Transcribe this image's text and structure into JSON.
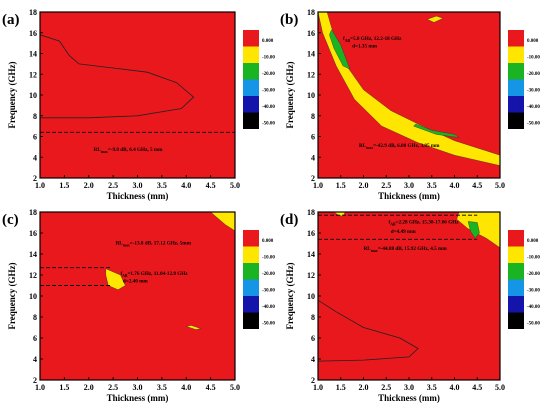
{
  "chart_data": [
    {
      "type": "heatmap",
      "panel_label": "(a)",
      "xlabel": "Thickness (mm)",
      "ylabel": "Frequency (GHz)",
      "xlim": [
        1.0,
        5.0
      ],
      "ylim": [
        2,
        18
      ],
      "xticks": [
        "1.0",
        "1.5",
        "2.0",
        "2.5",
        "3.0",
        "3.5",
        "4.0",
        "4.5",
        "5.0"
      ],
      "yticks": [
        "2",
        "4",
        "6",
        "8",
        "10",
        "12",
        "14",
        "16",
        "18"
      ],
      "legend": {
        "levels": [
          "0.000",
          "-10.00",
          "-20.00",
          "-30.00",
          "-40.00",
          "-50.00"
        ],
        "colors": [
          "#e8181d",
          "#ffe600",
          "#1ab423",
          "#1495e6",
          "#1414aa",
          "#000000"
        ]
      },
      "contours": [
        {
          "level": -10,
          "path": [
            [
              1.0,
              15.8
            ],
            [
              1.4,
              15.2
            ],
            [
              1.6,
              13.8
            ],
            [
              1.8,
              13.0
            ],
            [
              2.5,
              12.6
            ],
            [
              3.2,
              12.2
            ],
            [
              3.8,
              11.2
            ],
            [
              4.15,
              9.8
            ],
            [
              3.9,
              8.7
            ],
            [
              3.0,
              8.0
            ],
            [
              2.0,
              7.8
            ],
            [
              1.0,
              7.8
            ]
          ]
        }
      ],
      "regions": [],
      "dashed_lines": [
        {
          "y": 6.4,
          "x0": 1.0,
          "x1": 5.0
        }
      ],
      "annotations": [
        {
          "text": "RL_max=-9.8 dB, 6.4 GHz, 5 mm",
          "x": 2.1,
          "y": 4.6
        }
      ]
    },
    {
      "type": "heatmap",
      "panel_label": "(b)",
      "xlabel": "Thickness (mm)",
      "ylabel": "Frequency (GHz)",
      "xlim": [
        1.0,
        5.0
      ],
      "ylim": [
        2,
        18
      ],
      "xticks": [
        "1.0",
        "1.5",
        "2.0",
        "2.5",
        "3.0",
        "3.5",
        "4.0",
        "4.5",
        "5.0"
      ],
      "yticks": [
        "2",
        "4",
        "6",
        "8",
        "10",
        "12",
        "14",
        "16",
        "18"
      ],
      "legend": {
        "levels": [
          "0.000",
          "-10.00",
          "-20.00",
          "-30.00",
          "-40.00",
          "-50.00"
        ],
        "colors": [
          "#e8181d",
          "#ffe600",
          "#1ab423",
          "#1495e6",
          "#1414aa",
          "#000000"
        ]
      },
      "contours": [],
      "regions": [
        {
          "color": "#ffe600",
          "path": [
            [
              1.2,
              18
            ],
            [
              1.3,
              16.5
            ],
            [
              1.6,
              13.0
            ],
            [
              2.0,
              10.5
            ],
            [
              2.6,
              8.5
            ],
            [
              3.2,
              7.2
            ],
            [
              4.0,
              5.6
            ],
            [
              5.0,
              4.2
            ],
            [
              5.0,
              3.2
            ],
            [
              4.0,
              4.2
            ],
            [
              3.2,
              5.4
            ],
            [
              2.4,
              7.0
            ],
            [
              1.8,
              9.6
            ],
            [
              1.4,
              12.8
            ],
            [
              1.1,
              16.0
            ],
            [
              1.0,
              18
            ]
          ]
        },
        {
          "color": "#1ab423",
          "path": [
            [
              1.3,
              16.3
            ],
            [
              1.5,
              14.8
            ],
            [
              1.7,
              12.5
            ],
            [
              1.55,
              12.8
            ],
            [
              1.35,
              14.5
            ],
            [
              1.25,
              15.8
            ]
          ]
        },
        {
          "color": "#1ab423",
          "path": [
            [
              3.1,
              7.0
            ],
            [
              3.6,
              6.2
            ],
            [
              4.1,
              5.9
            ],
            [
              4.0,
              6.2
            ],
            [
              3.5,
              6.6
            ],
            [
              3.15,
              7.2
            ]
          ]
        },
        {
          "color": "#ffe600",
          "path": [
            [
              3.4,
              17.3
            ],
            [
              3.6,
              17.6
            ],
            [
              3.75,
              17.4
            ],
            [
              3.55,
              17.0
            ]
          ]
        }
      ],
      "dashed_lines": [],
      "annotations": [
        {
          "text": "f_AB=5.8 GHz, 12.2-18 GHz",
          "x": 1.55,
          "y": 15.3
        },
        {
          "text": "d=1.35 mm",
          "x": 1.75,
          "y": 14.6
        },
        {
          "text": "RL_max=-42.9 dB, 6.08 GHz, 3.85 mm",
          "x": 1.9,
          "y": 5.0
        }
      ]
    },
    {
      "type": "heatmap",
      "panel_label": "(c)",
      "xlabel": "Thickness (mm)",
      "ylabel": "Frequency (GHz)",
      "xlim": [
        1.0,
        5.0
      ],
      "ylim": [
        2,
        18
      ],
      "xticks": [
        "1.0",
        "1.5",
        "2.0",
        "2.5",
        "3.0",
        "3.5",
        "4.0",
        "4.5",
        "5.0"
      ],
      "yticks": [
        "2",
        "4",
        "6",
        "8",
        "10",
        "12",
        "14",
        "16",
        "18"
      ],
      "legend": {
        "levels": [
          "0.000",
          "-10.00",
          "-20.00",
          "-30.00",
          "-40.00",
          "-50.00"
        ],
        "colors": [
          "#e8181d",
          "#ffe600",
          "#1ab423",
          "#1495e6",
          "#1414aa",
          "#000000"
        ]
      },
      "contours": [],
      "regions": [
        {
          "color": "#ffe600",
          "path": [
            [
              2.35,
              12.6
            ],
            [
              2.65,
              12.0
            ],
            [
              2.75,
              11.0
            ],
            [
              2.6,
              10.6
            ],
            [
              2.4,
              11.0
            ],
            [
              2.35,
              12.0
            ]
          ]
        },
        {
          "color": "#ffe600",
          "path": [
            [
              4.5,
              18
            ],
            [
              5.0,
              18
            ],
            [
              5.0,
              16.2
            ],
            [
              4.8,
              16.8
            ]
          ]
        },
        {
          "color": "#ffe600",
          "path": [
            [
              4.0,
              7.1
            ],
            [
              4.2,
              6.8
            ],
            [
              4.3,
              6.9
            ],
            [
              4.1,
              7.2
            ]
          ]
        }
      ],
      "dashed_lines": [
        {
          "y": 12.7,
          "x0": 1.0,
          "x1": 2.45
        },
        {
          "y": 11.0,
          "x0": 1.0,
          "x1": 2.45
        }
      ],
      "annotations": [
        {
          "text": "RL_max=-13.8 dB, 17.12 GHz, 5mm",
          "x": 2.55,
          "y": 14.9
        },
        {
          "text": "f_AB=1.76 GHz, 11.04-12.8 GHz",
          "x": 2.65,
          "y": 12.0
        },
        {
          "text": "d=2.40 mm",
          "x": 2.7,
          "y": 11.3
        }
      ]
    },
    {
      "type": "heatmap",
      "panel_label": "(d)",
      "xlabel": "Thickness (mm)",
      "ylabel": "Frequency (GHz)",
      "xlim": [
        1.0,
        5.0
      ],
      "ylim": [
        2,
        18
      ],
      "xticks": [
        "1.0",
        "1.5",
        "2.0",
        "2.5",
        "3.0",
        "3.5",
        "4.0",
        "4.5",
        "5.0"
      ],
      "yticks": [
        "2",
        "4",
        "6",
        "8",
        "10",
        "12",
        "14",
        "16",
        "18"
      ],
      "legend": {
        "levels": [
          "0.000",
          "-10.00",
          "-20.00",
          "-30.00",
          "-40.00",
          "-50.00"
        ],
        "colors": [
          "#e8181d",
          "#ffe600",
          "#1ab423",
          "#1495e6",
          "#1414aa",
          "#000000"
        ]
      },
      "contours": [
        {
          "level": -10,
          "path": [
            [
              1.0,
              9.6
            ],
            [
              1.4,
              8.5
            ],
            [
              2.0,
              7.0
            ],
            [
              2.8,
              6.0
            ],
            [
              3.2,
              5.0
            ],
            [
              3.0,
              4.2
            ],
            [
              2.0,
              3.9
            ],
            [
              1.0,
              3.8
            ]
          ]
        }
      ],
      "regions": [
        {
          "color": "#ffe600",
          "path": [
            [
              1.35,
              18
            ],
            [
              1.6,
              18
            ],
            [
              1.55,
              17.6
            ],
            [
              1.45,
              17.7
            ]
          ]
        },
        {
          "color": "#ffe600",
          "path": [
            [
              4.1,
              18
            ],
            [
              5.0,
              18
            ],
            [
              5.0,
              14.6
            ],
            [
              4.7,
              15.5
            ],
            [
              4.3,
              16.4
            ],
            [
              4.05,
              17.3
            ]
          ]
        },
        {
          "color": "#1ab423",
          "path": [
            [
              4.3,
              17.1
            ],
            [
              4.5,
              17.0
            ],
            [
              4.55,
              16.0
            ],
            [
              4.45,
              15.5
            ],
            [
              4.35,
              16.2
            ]
          ]
        }
      ],
      "dashed_lines": [
        {
          "y": 17.7,
          "x0": 1.0,
          "x1": 4.5
        },
        {
          "y": 15.4,
          "x0": 1.0,
          "x1": 4.5
        }
      ],
      "annotations": [
        {
          "text": "f_AB=2.28 GHz, 15.38-17.66 GHz",
          "x": 2.55,
          "y": 16.9
        },
        {
          "text": "d=4.49 mm",
          "x": 2.6,
          "y": 16.0
        },
        {
          "text": "RL_max=-44.88 dB, 15.92 GHz, 4.5 mm",
          "x": 2.0,
          "y": 14.4
        }
      ]
    }
  ]
}
